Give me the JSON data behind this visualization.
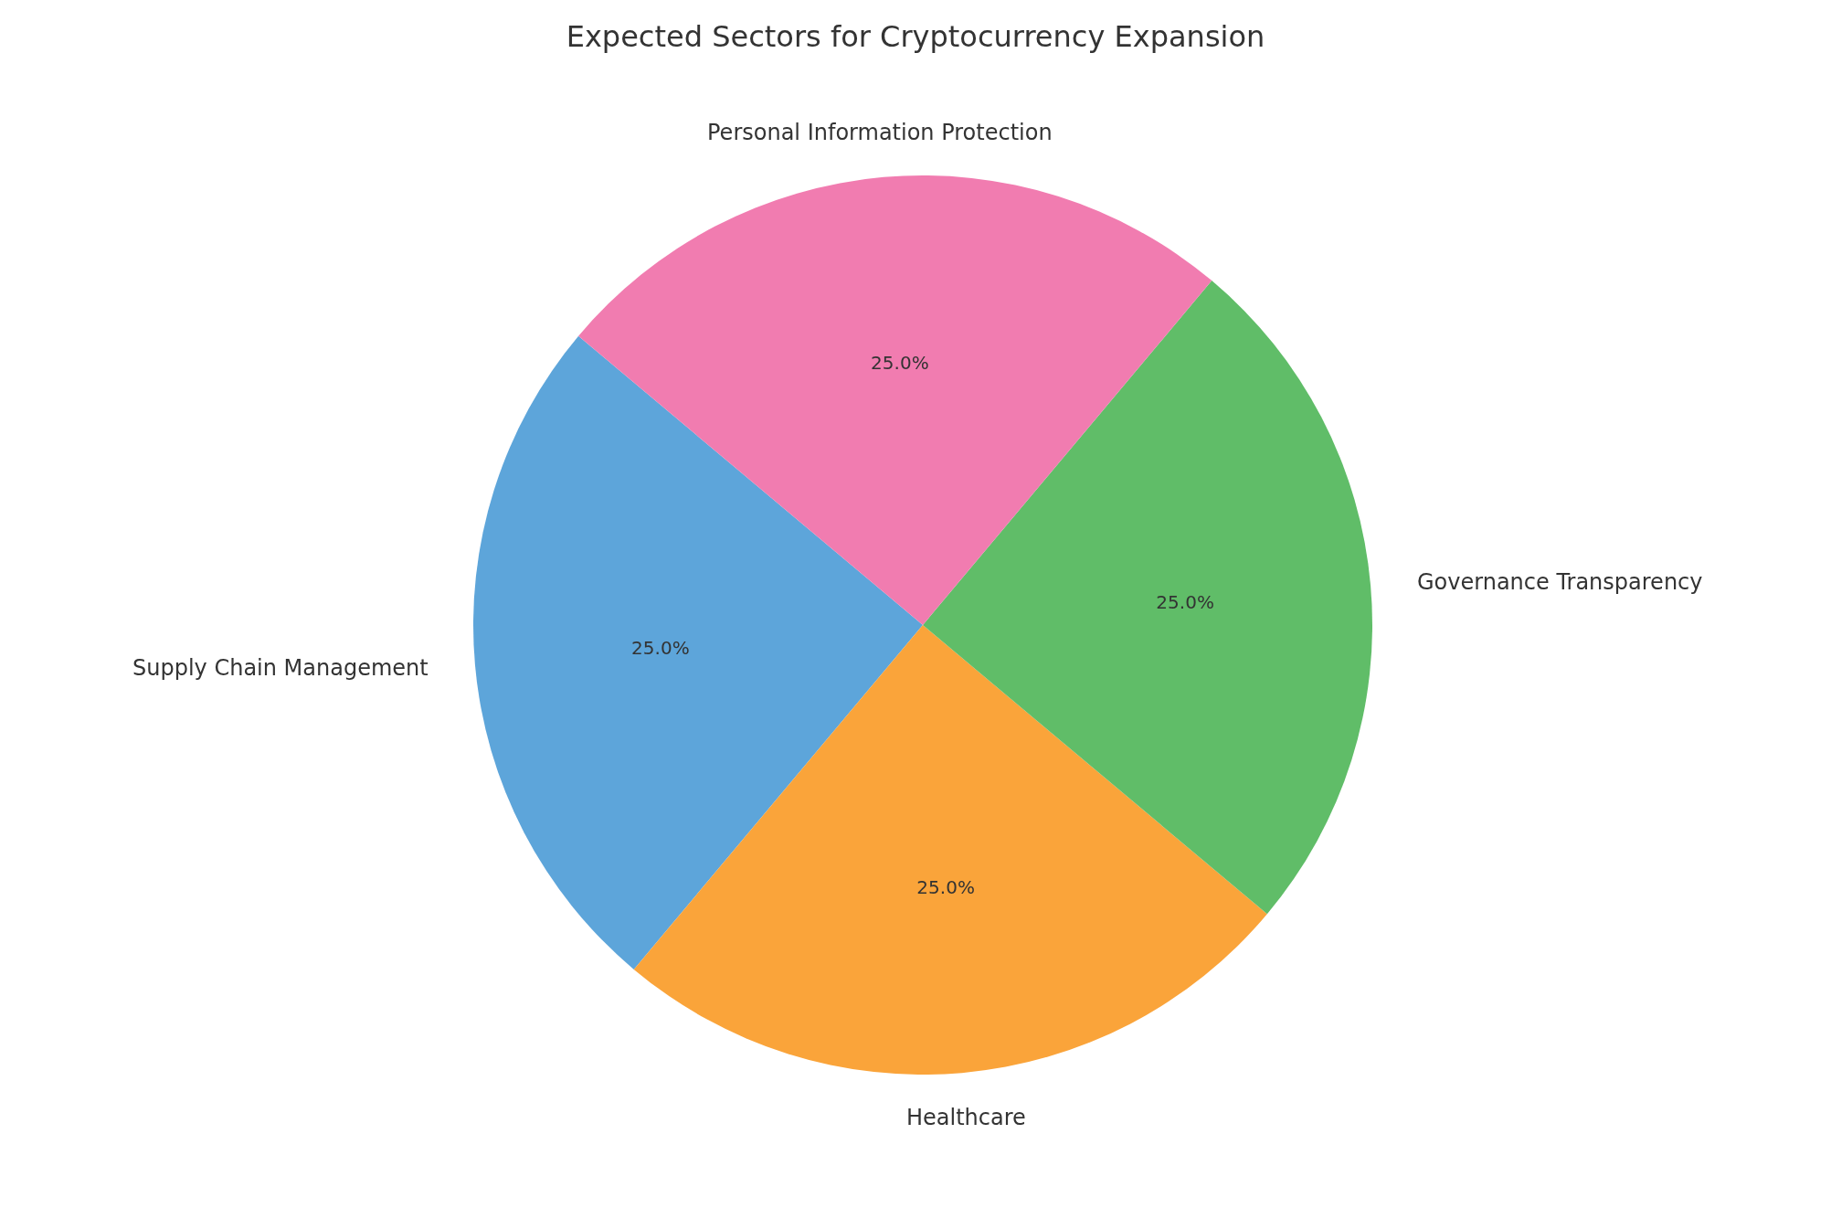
{
  "chart_data": {
    "type": "pie",
    "title": "Expected Sectors for Cryptocurrency Expansion",
    "categories": [
      "Supply Chain Management",
      "Healthcare",
      "Governance Transparency",
      "Personal Information Protection"
    ],
    "values": [
      25,
      25,
      25,
      25
    ],
    "colors": [
      "#5da5da",
      "#faa43a",
      "#60bd68",
      "#f17cb0"
    ],
    "value_labels": [
      "25.0%",
      "25.0%",
      "25.0%",
      "25.0%"
    ],
    "legend": false
  }
}
